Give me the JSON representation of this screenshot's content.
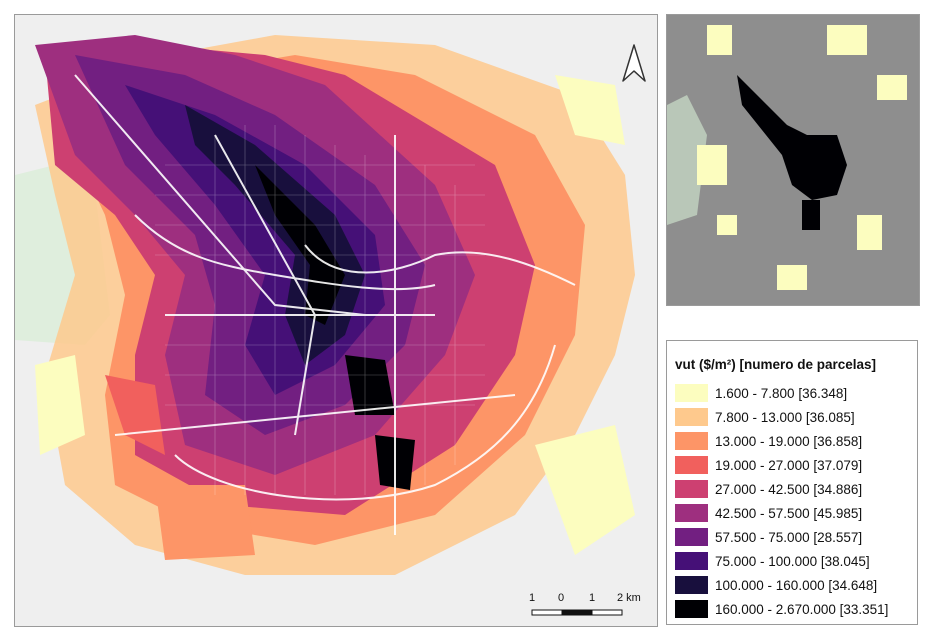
{
  "legend": {
    "title": "vut ($/m²)  [numero de parcelas]",
    "items": [
      {
        "label": "1.600 - 7.800 [36.348]",
        "color": "#fcfdbf"
      },
      {
        "label": "7.800 - 13.000 [36.085]",
        "color": "#fec98d"
      },
      {
        "label": "13.000 - 19.000 [36.858]",
        "color": "#fd9567"
      },
      {
        "label": "19.000 - 27.000 [37.079]",
        "color": "#f1605d"
      },
      {
        "label": "27.000 - 42.500 [34.886]",
        "color": "#cd4071"
      },
      {
        "label": "42.500 - 57.500 [45.985]",
        "color": "#9e2f7f"
      },
      {
        "label": "57.500 - 75.000 [28.557]",
        "color": "#721f81"
      },
      {
        "label": "75.000 - 100.000 [38.045]",
        "color": "#451077"
      },
      {
        "label": "100.000 - 160.000 [34.648]",
        "color": "#180f3d"
      },
      {
        "label": "160.000 - 2.670.000 [33.351]",
        "color": "#000004"
      }
    ]
  },
  "scale_bar": {
    "labels": [
      "1",
      "0",
      "1",
      "2 km"
    ]
  },
  "icons": {
    "north_arrow": "north-arrow-icon"
  },
  "colors": {
    "map_background": "#efefef",
    "inset_background": "#8e8e8e",
    "park": "#dfeedd"
  }
}
